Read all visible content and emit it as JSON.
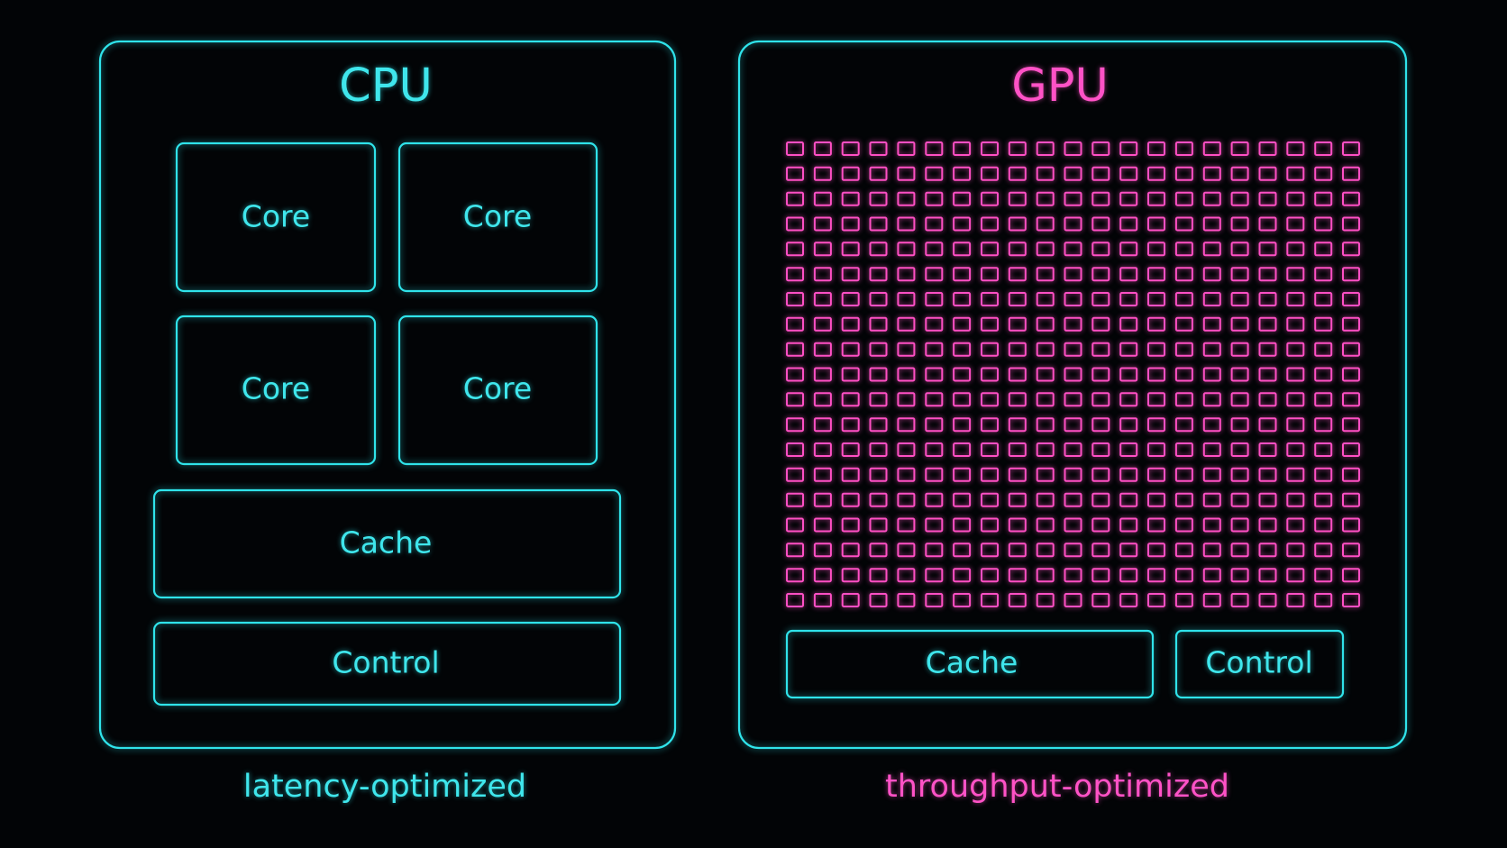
{
  "cpu": {
    "title": "CPU",
    "cores": [
      "Core",
      "Core",
      "Core",
      "Core"
    ],
    "cache": "Cache",
    "control": "Control",
    "caption": "latency-optimized"
  },
  "gpu": {
    "title": "GPU",
    "cache": "Cache",
    "control": "Control",
    "caption": "throughput-optimized"
  }
}
